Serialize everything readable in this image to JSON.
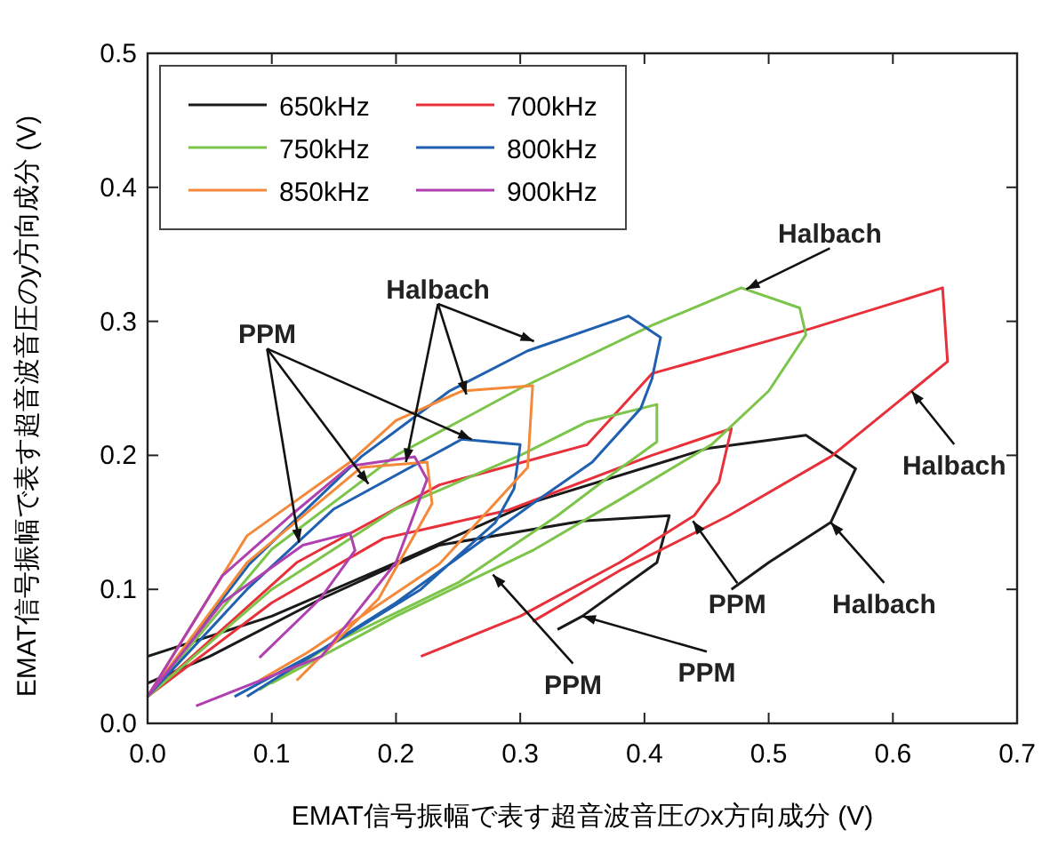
{
  "chart_data": {
    "type": "line",
    "xlabel": "EMAT信号振幅で表す超音波音圧のx方向成分 (V)",
    "ylabel": "EMAT信号振幅で表す超音波音圧のy方向成分 (V)",
    "xlim": [
      0,
      0.7
    ],
    "xticks": [
      {
        "value": 0,
        "label": "0.0"
      },
      0.1,
      0.2,
      0.3,
      0.4,
      0.5,
      0.6,
      0.7
    ],
    "ylim": [
      0,
      0.5
    ],
    "yticks": [
      {
        "value": 0,
        "label": "0.0"
      },
      0.1,
      0.2,
      0.3,
      0.4,
      0.5
    ],
    "grid": false,
    "legend": "top left",
    "marker": "none",
    "line_style": "solid",
    "series": [
      {
        "name": "650kHz",
        "color": "#1a1a1a",
        "x": [
          0,
          0.05,
          0.14,
          0.235,
          0.35,
          0.42,
          0.41,
          0.35,
          0.33,
          null,
          0,
          0.1,
          0.2,
          0.31,
          0.45,
          0.53,
          0.57,
          0.55,
          0.5,
          0.47
        ],
        "values": [
          0.03,
          0.05,
          0.093,
          0.133,
          0.151,
          0.155,
          0.12,
          0.08,
          0.07,
          null,
          0.05,
          0.08,
          0.12,
          0.165,
          0.205,
          0.215,
          0.19,
          0.15,
          0.12,
          0.1
        ]
      },
      {
        "name": "700kHz",
        "color": "#e8303a",
        "x": [
          0,
          0.1,
          0.19,
          0.29,
          0.406,
          0.47,
          0.46,
          0.44,
          0.38,
          0.3,
          0.22,
          null,
          0,
          0.12,
          0.235,
          0.354,
          0.406,
          0.525,
          0.64,
          0.644,
          0.615,
          0.55,
          0.468,
          0.382,
          0.31
        ],
        "values": [
          0.02,
          0.09,
          0.138,
          0.159,
          0.2,
          0.22,
          0.18,
          0.155,
          0.12,
          0.08,
          0.05,
          null,
          0.02,
          0.12,
          0.178,
          0.208,
          0.261,
          0.292,
          0.325,
          0.27,
          0.248,
          0.199,
          0.155,
          0.115,
          0.076
        ]
      },
      {
        "name": "750kHz",
        "color": "#7cc44a",
        "x": [
          0,
          0.1,
          0.2,
          0.3,
          0.354,
          0.41,
          0.41,
          0.38,
          0.33,
          0.25,
          0.15,
          0.09,
          null,
          0,
          0.1,
          0.2,
          0.3,
          0.406,
          0.478,
          0.525,
          0.53,
          0.5,
          0.454,
          0.382,
          0.31,
          0.2,
          0.1
        ],
        "values": [
          0.02,
          0.1,
          0.16,
          0.2,
          0.225,
          0.238,
          0.21,
          0.19,
          0.155,
          0.105,
          0.06,
          0.025,
          null,
          0.02,
          0.13,
          0.2,
          0.25,
          0.297,
          0.325,
          0.31,
          0.29,
          0.248,
          0.208,
          0.168,
          0.129,
          0.08,
          0.03
        ]
      },
      {
        "name": "800kHz",
        "color": "#2060b0",
        "x": [
          0,
          0.08,
          0.15,
          0.253,
          0.3,
          0.295,
          0.28,
          0.22,
          0.15,
          0.07,
          null,
          0,
          0.082,
          0.172,
          0.243,
          0.306,
          0.387,
          0.413,
          0.406,
          0.397,
          0.358,
          0.31,
          0.2,
          0.08
        ],
        "values": [
          0.02,
          0.1,
          0.16,
          0.212,
          0.208,
          0.175,
          0.15,
          0.1,
          0.06,
          0.02,
          null,
          0.02,
          0.119,
          0.199,
          0.248,
          0.278,
          0.304,
          0.288,
          0.257,
          0.235,
          0.195,
          0.164,
          0.09,
          0.02
        ]
      },
      {
        "name": "850kHz",
        "color": "#f4893a",
        "x": [
          0,
          0.08,
          0.172,
          0.225,
          0.229,
          0.186,
          0.12,
          null,
          0,
          0.08,
          0.163,
          0.2,
          0.253,
          0.31,
          0.306,
          0.235,
          0.129,
          0.09
        ],
        "values": [
          0.02,
          0.12,
          0.191,
          0.195,
          0.164,
          0.093,
          0.032,
          null,
          0.02,
          0.14,
          0.195,
          0.226,
          0.248,
          0.252,
          0.191,
          0.119,
          0.053,
          0.032
        ]
      },
      {
        "name": "900kHz",
        "color": "#b040b0",
        "x": [
          0,
          0.06,
          0.125,
          0.163,
          0.167,
          0.139,
          0.09,
          null,
          0,
          0.06,
          0.115,
          0.163,
          0.215,
          0.225,
          0.2,
          0.14,
          0.039
        ],
        "values": [
          0.02,
          0.09,
          0.133,
          0.142,
          0.129,
          0.093,
          0.049,
          null,
          0.02,
          0.11,
          0.155,
          0.192,
          0.199,
          0.182,
          0.12,
          0.05,
          0.013
        ]
      }
    ],
    "annotations": [
      {
        "text": "Halbach",
        "x": 0.482,
        "y": 0.324
      },
      {
        "text": "Halbach",
        "x": 0.208,
        "y": 0.195
      },
      {
        "text": "PPM",
        "x": 0.122,
        "y": 0.135
      },
      {
        "text": "Halbach",
        "x": 0.615,
        "y": 0.248
      },
      {
        "text": "PPM",
        "x": 0.439,
        "y": 0.151
      },
      {
        "text": "Halbach",
        "x": 0.55,
        "y": 0.15
      },
      {
        "text": "PPM",
        "x": 0.35,
        "y": 0.08
      },
      {
        "text": "PPM",
        "x": 0.278,
        "y": 0.111
      }
    ]
  }
}
